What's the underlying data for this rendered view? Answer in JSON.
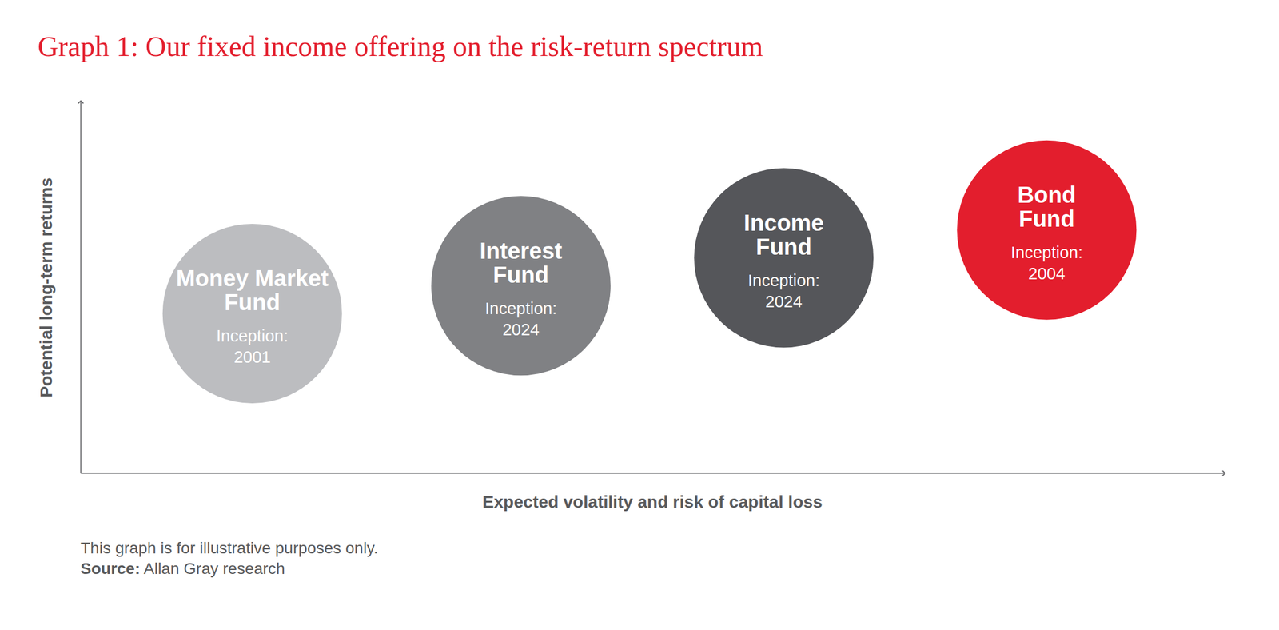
{
  "chart_data": {
    "type": "bubble",
    "title": "Graph 1: Our fixed income offering on the risk-return spectrum",
    "x_label": "Expected volatility and risk of capital loss",
    "y_label": "Potential long-term returns",
    "categories": [
      "Money Market\nFund",
      "Interest\nFund",
      "Income\nFund",
      "Bond\nFund"
    ],
    "x": [
      1.5,
      3.85,
      6.15,
      8.45
    ],
    "values": [
      4.3,
      5.05,
      5.8,
      6.55
    ],
    "colors": [
      "#bcbdc0",
      "#808184",
      "#55565a",
      "#e31e2d"
    ],
    "inception_label": "Inception:",
    "inception": [
      "2001",
      "2024",
      "2024",
      "2004"
    ],
    "xlim": [
      0,
      10
    ],
    "ylim": [
      0,
      10
    ],
    "xticks": [],
    "yticks": [],
    "tick_labels": false,
    "grid": false,
    "note": "This graph is for illustrative purposes only.",
    "source_label": "Source:",
    "source": "Allan Gray research"
  }
}
